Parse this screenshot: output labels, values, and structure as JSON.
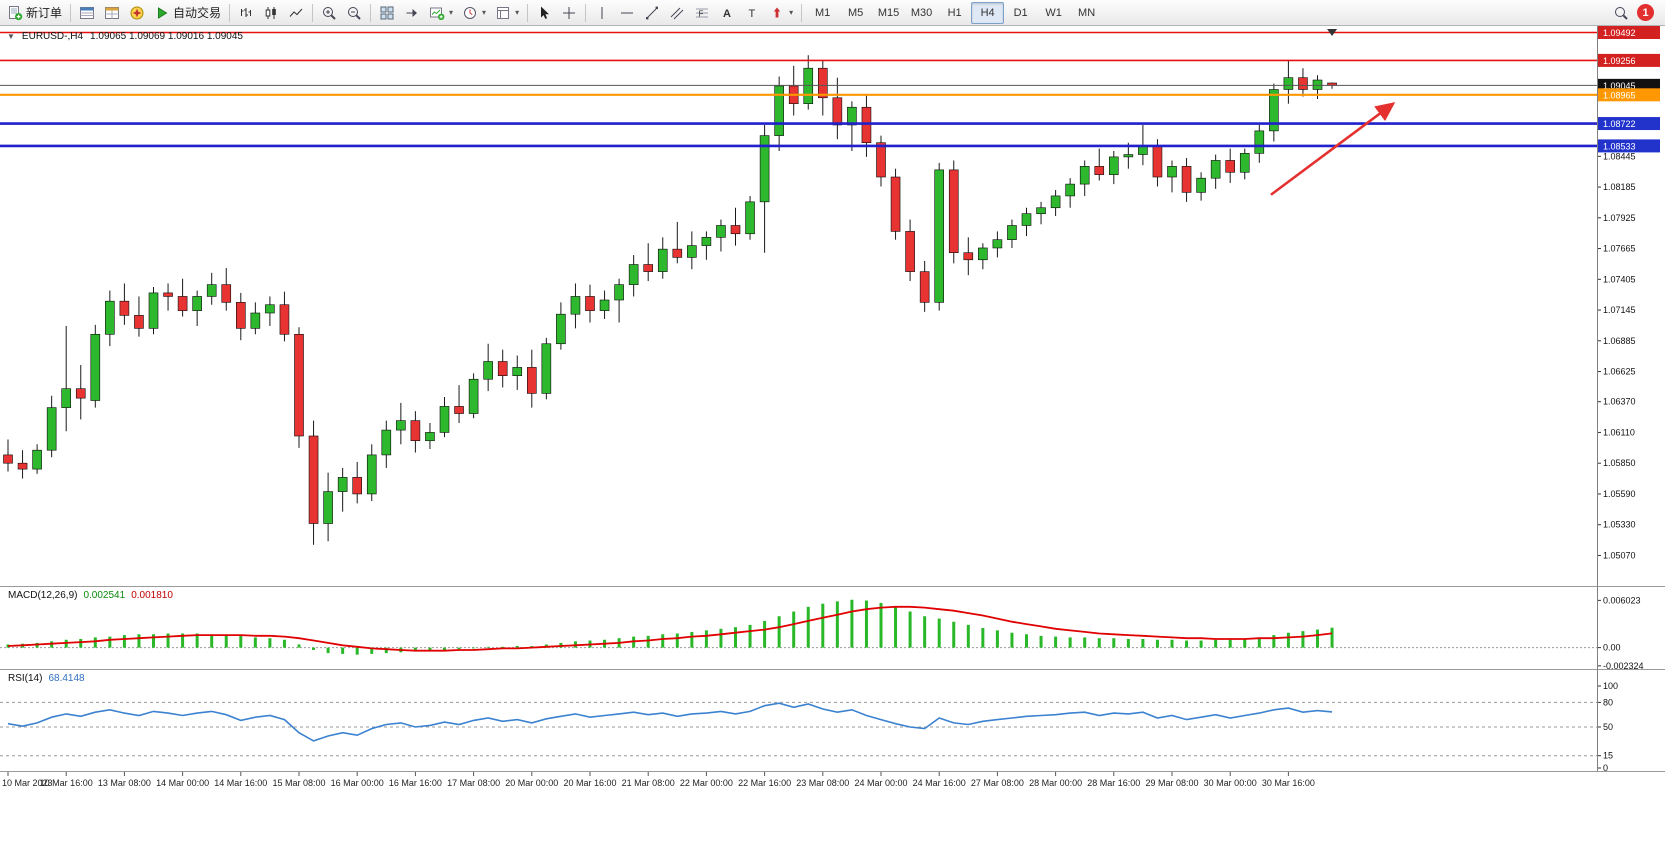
{
  "toolbar": {
    "new_order_label": "新订单",
    "auto_trading_label": "自动交易",
    "timeframes": [
      "M1",
      "M5",
      "M15",
      "M30",
      "H1",
      "H4",
      "D1",
      "W1",
      "MN"
    ],
    "active_timeframe": "H4",
    "notification_count": "1",
    "icons": [
      "new-order",
      "market-watch",
      "data-window",
      "navigator",
      "auto-trading-play",
      "bar-chart",
      "candlestick-chart",
      "line-chart",
      "zoom-in",
      "zoom-out",
      "tile-windows",
      "chart-shift",
      "new-chart",
      "periods-clock",
      "templates",
      "cursor",
      "crosshair",
      "vertical-line",
      "horizontal-line",
      "trendline",
      "equidistant-channel",
      "fibonacci",
      "text",
      "text-label",
      "arrows",
      "dropdown-caret",
      "search",
      "notification-badge"
    ]
  },
  "chart_header": {
    "collapse_arrow": "▼",
    "symbol_tf": "EURUSD-,H4",
    "ohlc": "1.09065 1.09069 1.09016 1.09045"
  },
  "chart_data": {
    "type": "candlestick",
    "symbol": "EURUSD",
    "timeframe": "H4",
    "colors": {
      "up": "#2eb82e",
      "down": "#e83333",
      "wick": "#1a1a1a",
      "background": "#ffffff"
    },
    "price_panel": {
      "ylim": [
        1.0482,
        1.0953
      ],
      "current_price": "1.09045",
      "axis_ticks": [
        1.08445,
        1.08185,
        1.07925,
        1.07665,
        1.07405,
        1.07145,
        1.06885,
        1.06625,
        1.0637,
        1.0611,
        1.0585,
        1.0559,
        1.0533,
        1.0507
      ],
      "hlines": [
        {
          "name": "resistance-line-upper",
          "price": 1.09492,
          "color": "#e61010",
          "width": 1.6,
          "label": "1.09492",
          "box": "#d32020"
        },
        {
          "name": "resistance-line-lower",
          "price": 1.09256,
          "color": "#e61010",
          "width": 1.6,
          "label": "1.09256",
          "box": "#d32020"
        },
        {
          "name": "current-price-line",
          "price": 1.09045,
          "color": "#555555",
          "width": 1,
          "label": "1.09045",
          "box": "#111111"
        },
        {
          "name": "orange-level-line",
          "price": 1.08965,
          "color": "#ff9800",
          "width": 2.2,
          "label": "1.08965",
          "box": "#ff9800"
        },
        {
          "name": "support-line-upper",
          "price": 1.08722,
          "color": "#2020cc",
          "width": 2.6,
          "label": "1.08722",
          "box": "#2233cc"
        },
        {
          "name": "support-line-lower",
          "price": 1.08533,
          "color": "#2020cc",
          "width": 2.6,
          "label": "1.08533",
          "box": "#2233cc"
        }
      ],
      "trend_arrow": {
        "from_bar": 86.8,
        "from_price": 1.0812,
        "to_bar": 95.2,
        "to_price": 1.0889,
        "color": "#e53030"
      },
      "candles": [
        [
          1.0592,
          1.0605,
          1.0578,
          1.0585
        ],
        [
          1.0585,
          1.0596,
          1.0572,
          1.058
        ],
        [
          1.058,
          1.0601,
          1.0576,
          1.0596
        ],
        [
          1.0596,
          1.0642,
          1.059,
          1.0632
        ],
        [
          1.0632,
          1.0701,
          1.0612,
          1.0648
        ],
        [
          1.0648,
          1.0668,
          1.0622,
          1.064
        ],
        [
          1.0638,
          1.0702,
          1.0632,
          1.0694
        ],
        [
          1.0694,
          1.0731,
          1.0684,
          1.0722
        ],
        [
          1.0722,
          1.0737,
          1.0702,
          1.071
        ],
        [
          1.071,
          1.0726,
          1.0692,
          1.0699
        ],
        [
          1.0699,
          1.0734,
          1.0694,
          1.0729
        ],
        [
          1.0729,
          1.0737,
          1.0714,
          1.0726
        ],
        [
          1.0726,
          1.0741,
          1.0709,
          1.0714
        ],
        [
          1.0714,
          1.0731,
          1.0701,
          1.0726
        ],
        [
          1.0726,
          1.0746,
          1.0719,
          1.0736
        ],
        [
          1.0736,
          1.075,
          1.0714,
          1.0721
        ],
        [
          1.0721,
          1.0729,
          1.0689,
          1.0699
        ],
        [
          1.0699,
          1.0721,
          1.0694,
          1.0712
        ],
        [
          1.0712,
          1.0726,
          1.0701,
          1.0719
        ],
        [
          1.0719,
          1.073,
          1.0688,
          1.0694
        ],
        [
          1.0694,
          1.07,
          1.0598,
          1.0608
        ],
        [
          1.0608,
          1.0621,
          1.0516,
          1.0534
        ],
        [
          1.0534,
          1.0577,
          1.0519,
          1.0561
        ],
        [
          1.0561,
          1.0581,
          1.0544,
          1.0573
        ],
        [
          1.0573,
          1.0586,
          1.0551,
          1.0559
        ],
        [
          1.0559,
          1.0601,
          1.0553,
          1.0592
        ],
        [
          1.0592,
          1.0621,
          1.0581,
          1.0613
        ],
        [
          1.0613,
          1.0636,
          1.0601,
          1.0621
        ],
        [
          1.0621,
          1.0629,
          1.0594,
          1.0604
        ],
        [
          1.0604,
          1.0619,
          1.0597,
          1.0611
        ],
        [
          1.0611,
          1.0641,
          1.0607,
          1.0633
        ],
        [
          1.0633,
          1.0651,
          1.0619,
          1.0627
        ],
        [
          1.0627,
          1.0661,
          1.0623,
          1.0656
        ],
        [
          1.0656,
          1.0686,
          1.0646,
          1.0671
        ],
        [
          1.0671,
          1.0681,
          1.0649,
          1.0659
        ],
        [
          1.0659,
          1.0676,
          1.0647,
          1.0666
        ],
        [
          1.0666,
          1.0681,
          1.0632,
          1.0644
        ],
        [
          1.0644,
          1.0691,
          1.0639,
          1.0686
        ],
        [
          1.0686,
          1.0721,
          1.0681,
          1.0711
        ],
        [
          1.0711,
          1.0737,
          1.0699,
          1.0726
        ],
        [
          1.0726,
          1.0736,
          1.0704,
          1.0714
        ],
        [
          1.0714,
          1.0731,
          1.0707,
          1.0723
        ],
        [
          1.0723,
          1.0741,
          1.0704,
          1.0736
        ],
        [
          1.0736,
          1.0761,
          1.0726,
          1.0753
        ],
        [
          1.0753,
          1.0771,
          1.0739,
          1.0747
        ],
        [
          1.0747,
          1.0776,
          1.0741,
          1.0766
        ],
        [
          1.0766,
          1.0789,
          1.0754,
          1.0759
        ],
        [
          1.0759,
          1.0781,
          1.0749,
          1.0769
        ],
        [
          1.0769,
          1.0781,
          1.0757,
          1.0776
        ],
        [
          1.0776,
          1.0791,
          1.0764,
          1.0786
        ],
        [
          1.0786,
          1.0801,
          1.0769,
          1.0779
        ],
        [
          1.0779,
          1.0811,
          1.0774,
          1.0806
        ],
        [
          1.0806,
          1.0871,
          1.0763,
          1.0862
        ],
        [
          1.0862,
          1.0912,
          1.0849,
          1.0904
        ],
        [
          1.0904,
          1.0921,
          1.0879,
          1.0889
        ],
        [
          1.0889,
          1.093,
          1.0884,
          1.0919
        ],
        [
          1.0919,
          1.0926,
          1.0879,
          1.0894
        ],
        [
          1.0894,
          1.0911,
          1.0859,
          1.0871
        ],
        [
          1.0871,
          1.0891,
          1.0849,
          1.0886
        ],
        [
          1.0886,
          1.0896,
          1.0844,
          1.0856
        ],
        [
          1.0856,
          1.0862,
          1.0819,
          1.0827
        ],
        [
          1.0827,
          1.0834,
          1.0774,
          1.0781
        ],
        [
          1.0781,
          1.0791,
          1.0739,
          1.0747
        ],
        [
          1.0747,
          1.0756,
          1.0713,
          1.0721
        ],
        [
          1.0721,
          1.0839,
          1.0714,
          1.0833
        ],
        [
          1.0833,
          1.0841,
          1.0754,
          1.0763
        ],
        [
          1.0763,
          1.0776,
          1.0744,
          1.0757
        ],
        [
          1.0757,
          1.0771,
          1.0749,
          1.0767
        ],
        [
          1.0767,
          1.0781,
          1.0759,
          1.0774
        ],
        [
          1.0774,
          1.0791,
          1.0767,
          1.0786
        ],
        [
          1.0786,
          1.0801,
          1.0777,
          1.0796
        ],
        [
          1.0796,
          1.0806,
          1.0787,
          1.0801
        ],
        [
          1.0801,
          1.0816,
          1.0794,
          1.0811
        ],
        [
          1.0811,
          1.0826,
          1.0801,
          1.0821
        ],
        [
          1.0821,
          1.0841,
          1.0811,
          1.0836
        ],
        [
          1.0836,
          1.0851,
          1.0824,
          1.0829
        ],
        [
          1.0829,
          1.0849,
          1.0821,
          1.0844
        ],
        [
          1.0844,
          1.0856,
          1.0834,
          1.0846
        ],
        [
          1.0846,
          1.0871,
          1.0837,
          1.0853
        ],
        [
          1.0853,
          1.0859,
          1.0819,
          1.0827
        ],
        [
          1.0827,
          1.0841,
          1.0814,
          1.0836
        ],
        [
          1.0836,
          1.0843,
          1.0806,
          1.0814
        ],
        [
          1.0814,
          1.0831,
          1.0807,
          1.0826
        ],
        [
          1.0826,
          1.0846,
          1.0817,
          1.0841
        ],
        [
          1.0841,
          1.0851,
          1.0822,
          1.0831
        ],
        [
          1.0831,
          1.0851,
          1.0825,
          1.0847
        ],
        [
          1.0847,
          1.0871,
          1.0839,
          1.0866
        ],
        [
          1.0866,
          1.0906,
          1.0857,
          1.0901
        ],
        [
          1.0901,
          1.0926,
          1.0889,
          1.0911
        ],
        [
          1.0911,
          1.0919,
          1.0895,
          1.0901
        ],
        [
          1.0901,
          1.0913,
          1.0893,
          1.0909
        ],
        [
          1.09065,
          1.09069,
          1.09016,
          1.09045
        ]
      ]
    },
    "macd_panel": {
      "label": "MACD(12,26,9)",
      "value_main": "0.002541",
      "value_signal": "0.001810",
      "ylim": [
        -0.0026,
        0.0076
      ],
      "colors": {
        "histogram": "#28b828",
        "signal": "#e00000"
      },
      "axis_ticks": [
        {
          "v": 0.006023,
          "t": "0.006023"
        },
        {
          "v": 0,
          "t": "0.00"
        },
        {
          "v": -0.002324,
          "t": "-0.002324"
        }
      ],
      "histogram": [
        0.0004,
        0.0005,
        0.0006,
        0.0008,
        0.001,
        0.0011,
        0.0013,
        0.0014,
        0.0016,
        0.0017,
        0.0017,
        0.0018,
        0.0018,
        0.0018,
        0.0017,
        0.0016,
        0.0015,
        0.0013,
        0.0012,
        0.001,
        0.0004,
        -0.0003,
        -0.0007,
        -0.0008,
        -0.0009,
        -0.0008,
        -0.0007,
        -0.0006,
        -0.0005,
        -0.0004,
        -0.0003,
        -0.0002,
        -0.0001,
        0.0001,
        0.0001,
        0.0002,
        0.0002,
        0.0004,
        0.0006,
        0.0008,
        0.0009,
        0.001,
        0.0012,
        0.0014,
        0.0015,
        0.0017,
        0.0018,
        0.002,
        0.0022,
        0.0024,
        0.0026,
        0.0029,
        0.0034,
        0.004,
        0.0046,
        0.0052,
        0.0056,
        0.0059,
        0.0061,
        0.006,
        0.0057,
        0.0052,
        0.0046,
        0.004,
        0.0037,
        0.0033,
        0.0029,
        0.0025,
        0.0022,
        0.0019,
        0.0017,
        0.0015,
        0.0014,
        0.0013,
        0.0013,
        0.0012,
        0.0012,
        0.0011,
        0.0011,
        0.001,
        0.001,
        0.0009,
        0.0009,
        0.001,
        0.001,
        0.0011,
        0.0013,
        0.0016,
        0.0019,
        0.0021,
        0.0023,
        0.002541
      ],
      "signal": [
        0.0002,
        0.0003,
        0.0004,
        0.0005,
        0.0006,
        0.0007,
        0.0008,
        0.001,
        0.0011,
        0.0012,
        0.0013,
        0.0014,
        0.0015,
        0.0016,
        0.0016,
        0.0016,
        0.0016,
        0.0015,
        0.0015,
        0.0014,
        0.0012,
        0.0009,
        0.0006,
        0.0003,
        0.0001,
        -0.0001,
        -0.0002,
        -0.0003,
        -0.0004,
        -0.0004,
        -0.0004,
        -0.0003,
        -0.0003,
        -0.0002,
        -0.0001,
        -0.0001,
        0.0,
        0.0001,
        0.0002,
        0.0003,
        0.0004,
        0.0005,
        0.0006,
        0.0008,
        0.0009,
        0.0011,
        0.0012,
        0.0014,
        0.0015,
        0.0017,
        0.0019,
        0.0021,
        0.0023,
        0.0026,
        0.003,
        0.0034,
        0.0038,
        0.0042,
        0.0046,
        0.0049,
        0.0051,
        0.0052,
        0.0052,
        0.0051,
        0.0049,
        0.0047,
        0.0044,
        0.0041,
        0.0037,
        0.0033,
        0.003,
        0.0027,
        0.0024,
        0.0022,
        0.002,
        0.0018,
        0.0017,
        0.0016,
        0.0015,
        0.0014,
        0.0013,
        0.0012,
        0.0012,
        0.0011,
        0.0011,
        0.0011,
        0.0012,
        0.0012,
        0.0013,
        0.0014,
        0.0016,
        0.00181
      ]
    },
    "rsi_panel": {
      "label": "RSI(14)",
      "value": "68.4148",
      "color": "#3b82d0",
      "levels": [
        80,
        50,
        15
      ],
      "axis_ticks": [
        {
          "v": 100,
          "t": "100"
        },
        {
          "v": 80,
          "t": "80"
        },
        {
          "v": 50,
          "t": "50"
        },
        {
          "v": 15,
          "t": "15"
        },
        {
          "v": 0,
          "t": "0"
        }
      ],
      "values": [
        54,
        51,
        55,
        62,
        66,
        63,
        68,
        71,
        67,
        64,
        69,
        67,
        64,
        67,
        69,
        65,
        58,
        62,
        64,
        59,
        43,
        33,
        39,
        43,
        40,
        48,
        53,
        55,
        50,
        52,
        56,
        53,
        58,
        61,
        57,
        59,
        55,
        60,
        63,
        66,
        62,
        64,
        66,
        68,
        65,
        67,
        63,
        66,
        67,
        69,
        66,
        69,
        76,
        79,
        74,
        78,
        72,
        68,
        71,
        64,
        59,
        54,
        50,
        48,
        61,
        55,
        53,
        57,
        59,
        61,
        63,
        64,
        65,
        67,
        68,
        64,
        67,
        66,
        68,
        61,
        64,
        59,
        62,
        65,
        61,
        64,
        67,
        71,
        73,
        68,
        70,
        68.4148
      ]
    },
    "time_axis": {
      "bars_per_label": 4,
      "labels": [
        "10 Mar 2023",
        "10 Mar 16:00",
        "13 Mar 08:00",
        "14 Mar 00:00",
        "14 Mar 16:00",
        "15 Mar 08:00",
        "16 Mar 00:00",
        "16 Mar 16:00",
        "17 Mar 08:00",
        "20 Mar 00:00",
        "20 Mar 16:00",
        "21 Mar 08:00",
        "22 Mar 00:00",
        "22 Mar 16:00",
        "23 Mar 08:00",
        "24 Mar 00:00",
        "24 Mar 16:00",
        "27 Mar 08:00",
        "28 Mar 00:00",
        "28 Mar 16:00",
        "29 Mar 08:00",
        "30 Mar 00:00",
        "30 Mar 16:00"
      ]
    }
  }
}
